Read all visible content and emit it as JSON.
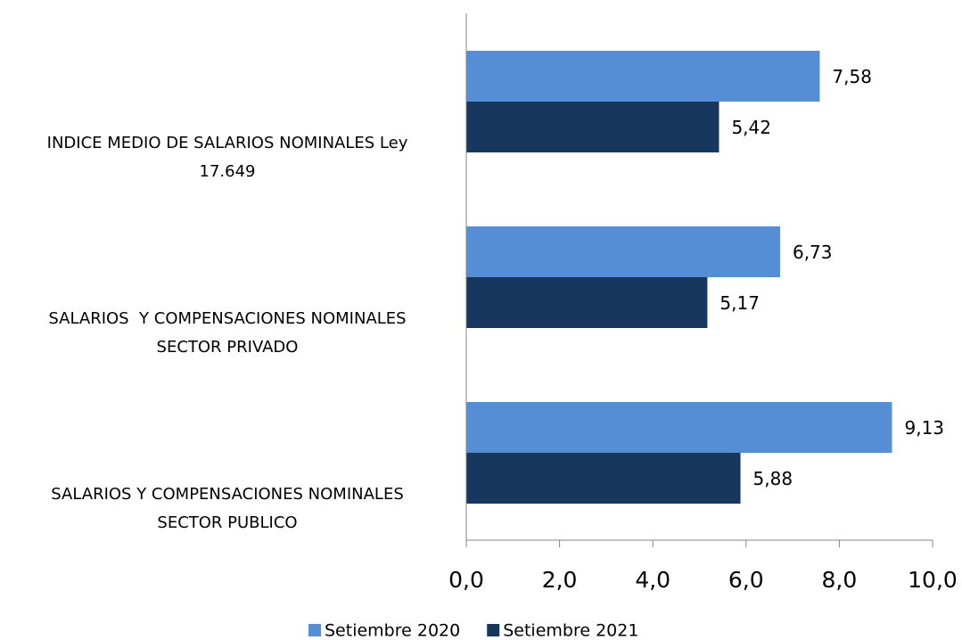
{
  "chart_data": {
    "type": "barh",
    "categories": [
      "INDICE MEDIO DE SALARIOS NOMINALES Ley\n17.649",
      "SALARIOS  Y COMPENSACIONES NOMINALES\nSECTOR PRIVADO",
      "SALARIOS Y COMPENSACIONES NOMINALES\nSECTOR PUBLICO"
    ],
    "series": [
      {
        "name": "Setiembre 2020",
        "color": "#558ed5",
        "values": [
          7.58,
          6.73,
          9.13
        ],
        "value_labels": [
          "7,58",
          "6,73",
          "9,13"
        ]
      },
      {
        "name": "Setiembre 2021",
        "color": "#17375e",
        "values": [
          5.42,
          5.17,
          5.88
        ],
        "value_labels": [
          "5,42",
          "5,17",
          "5,88"
        ]
      }
    ],
    "xlim": [
      0,
      10
    ],
    "xticks": [
      {
        "value": 0,
        "label": "0,0"
      },
      {
        "value": 2,
        "label": "2,0"
      },
      {
        "value": 4,
        "label": "4,0"
      },
      {
        "value": 6,
        "label": "6,0"
      },
      {
        "value": 8,
        "label": "8,0"
      },
      {
        "value": 10,
        "label": "10,0"
      }
    ],
    "legend": "bottom"
  }
}
